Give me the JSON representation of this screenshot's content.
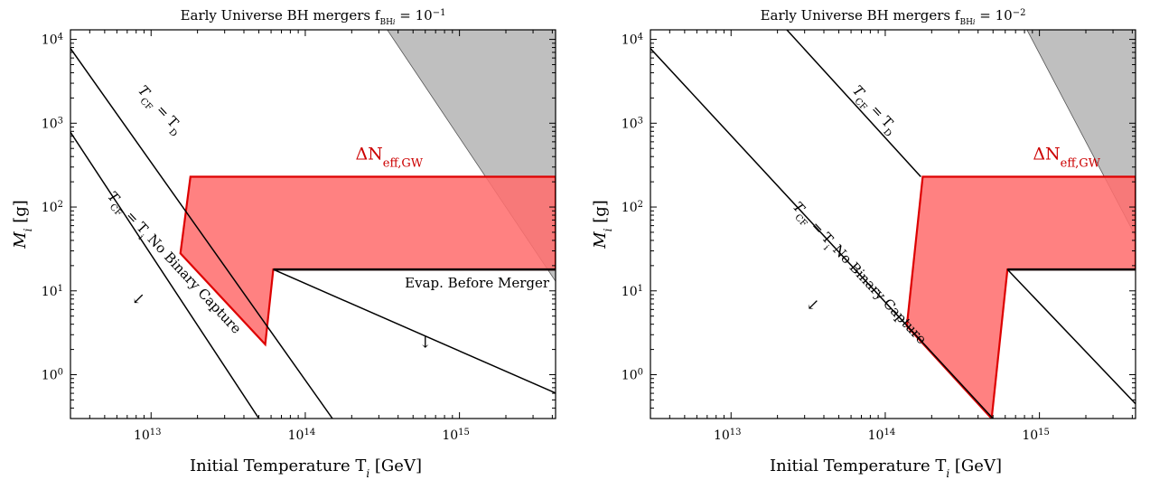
{
  "figure": {
    "xlabel": "Initial Temperature  T",
    "xlabel_sub": "i",
    "xlabel_unit": " [GeV]",
    "ylabel": "M",
    "ylabel_sub": "i",
    "ylabel_unit": " [g]"
  },
  "chart_data": [
    {
      "type": "area",
      "title": "Early Universe BH mergers  f",
      "title_sub": "BH",
      "title_subsub": "i",
      "title_eq": " = 10",
      "title_exp": "−1",
      "x_scale": "log",
      "y_scale": "log",
      "xlim": [
        3000000000000.0,
        4200000000000000.0
      ],
      "ylim": [
        0.3,
        13000.0
      ],
      "x_ticks": [
        {
          "base": "10",
          "exp": "13",
          "value": 10000000000000.0
        },
        {
          "base": "10",
          "exp": "14",
          "value": 100000000000000.0
        },
        {
          "base": "10",
          "exp": "15",
          "value": 1000000000000000.0
        }
      ],
      "y_ticks": [
        {
          "base": "10",
          "exp": "0",
          "value": 1
        },
        {
          "base": "10",
          "exp": "1",
          "value": 10
        },
        {
          "base": "10",
          "exp": "2",
          "value": 100
        },
        {
          "base": "10",
          "exp": "3",
          "value": 1000
        },
        {
          "base": "10",
          "exp": "4",
          "value": 10000
        }
      ],
      "lines": [
        {
          "name": "upper-diagonal",
          "points": [
            [
              3000000000000.0,
              7800
            ],
            [
              150000000000000.0,
              0.3
            ]
          ]
        },
        {
          "name": "lower-diagonal",
          "points": [
            [
              3000000000000.0,
              780
            ],
            [
              50000000000000.0,
              0.3
            ]
          ]
        },
        {
          "name": "evap-diagonal",
          "points": [
            [
              62000000000000.0,
              18
            ],
            [
              1e+16,
              0.3
            ]
          ]
        },
        {
          "name": "evap-horizontal",
          "thick": true,
          "points": [
            [
              62000000000000.0,
              18
            ],
            [
              4200000000000000.0,
              18
            ]
          ]
        }
      ],
      "red_region": [
        [
          18000000000000.0,
          230
        ],
        [
          4200000000000000.0,
          230
        ],
        [
          4200000000000000.0,
          18
        ],
        [
          62000000000000.0,
          18
        ],
        [
          55000000000000.0,
          2.3
        ],
        [
          15500000000000.0,
          28
        ]
      ],
      "gray_region": [
        [
          340000000000000.0,
          13000.0
        ],
        [
          4200000000000000.0,
          13000.0
        ],
        [
          4200000000000000.0,
          13
        ]
      ],
      "neff_label": {
        "text": "ΔN",
        "sub": "eff,GW",
        "at": [
          350000000000000.0,
          370
        ]
      },
      "annotations": [
        {
          "name": "cf-equals-d",
          "base": "T",
          "sub": "CF",
          "eq": " = T",
          "sub2": "D",
          "tail": "",
          "at": [
            11000000000000.0,
            1350
          ],
          "angle": 47
        },
        {
          "name": "cf-equals-i",
          "base": "T",
          "sub": "CF",
          "eq": " = T",
          "sub2": "i",
          "tail": "  No Binary Capture",
          "at": [
            13500000000000.0,
            20
          ],
          "angle": 47
        },
        {
          "name": "evap-before-merger",
          "base": "Evap. Before Merger",
          "sub": "",
          "eq": "",
          "sub2": "",
          "tail": "",
          "at": [
            1300000000000000.0,
            11
          ],
          "angle": 0
        }
      ],
      "arrows": [
        {
          "name": "arrow-binary-capture",
          "glyph": "↙",
          "at": [
            8300000000000.0,
            7
          ]
        },
        {
          "name": "arrow-evap",
          "glyph": "↓",
          "at": [
            600000000000000.0,
            2.1
          ]
        }
      ]
    },
    {
      "type": "area",
      "title": "Early Universe BH mergers  f",
      "title_sub": "BH",
      "title_subsub": "i",
      "title_eq": " = 10",
      "title_exp": "−2",
      "x_scale": "log",
      "y_scale": "log",
      "xlim": [
        3000000000000.0,
        4200000000000000.0
      ],
      "ylim": [
        0.3,
        13000.0
      ],
      "x_ticks": [
        {
          "base": "10",
          "exp": "13",
          "value": 10000000000000.0
        },
        {
          "base": "10",
          "exp": "14",
          "value": 100000000000000.0
        },
        {
          "base": "10",
          "exp": "15",
          "value": 1000000000000000.0
        }
      ],
      "y_ticks": [
        {
          "base": "10",
          "exp": "0",
          "value": 1
        },
        {
          "base": "10",
          "exp": "1",
          "value": 10
        },
        {
          "base": "10",
          "exp": "2",
          "value": 100
        },
        {
          "base": "10",
          "exp": "3",
          "value": 1000
        },
        {
          "base": "10",
          "exp": "4",
          "value": 10000
        }
      ],
      "lines": [
        {
          "name": "upper-diagonal",
          "points": [
            [
              23000000000000.0,
              13000.0
            ],
            [
              170000000000000.0,
              230
            ]
          ]
        },
        {
          "name": "lower-diagonal",
          "points": [
            [
              3000000000000.0,
              7800
            ],
            [
              500000000000000.0,
              0.3
            ]
          ]
        },
        {
          "name": "evap-diagonal",
          "points": [
            [
              620000000000000.0,
              18
            ],
            [
              4200000000000000.0,
              0.45
            ]
          ]
        },
        {
          "name": "evap-horizontal",
          "thick": true,
          "points": [
            [
              620000000000000.0,
              18
            ],
            [
              4200000000000000.0,
              18
            ]
          ]
        }
      ],
      "red_region": [
        [
          175000000000000.0,
          230
        ],
        [
          4200000000000000.0,
          230
        ],
        [
          4200000000000000.0,
          18
        ],
        [
          620000000000000.0,
          18
        ],
        [
          490000000000000.0,
          0.3
        ],
        [
          138000000000000.0,
          3.8
        ]
      ],
      "gray_region": [
        [
          830000000000000.0,
          13000.0
        ],
        [
          4200000000000000.0,
          13000.0
        ],
        [
          4200000000000000.0,
          45
        ]
      ],
      "neff_label": {
        "text": "ΔN",
        "sub": "eff,GW",
        "at": [
          1500000000000000.0,
          370
        ]
      },
      "annotations": [
        {
          "name": "cf-equals-d",
          "base": "T",
          "sub": "CF",
          "eq": " = T",
          "sub2": "D",
          "tail": "",
          "at": [
            82000000000000.0,
            1350
          ],
          "angle": 47
        },
        {
          "name": "cf-equals-i",
          "base": "T",
          "sub": "CF",
          "eq": " = T",
          "sub2": "i",
          "tail": "  No Binary Capture",
          "at": [
            65000000000000.0,
            15
          ],
          "angle": 47
        },
        {
          "name": "evap-before-merger",
          "base": "",
          "sub": "",
          "eq": "",
          "sub2": "",
          "tail": "",
          "at": [
            1000000000000000.0,
            10
          ],
          "angle": 0
        }
      ],
      "arrows": [
        {
          "name": "arrow-binary-capture",
          "glyph": "↙",
          "at": [
            34000000000000.0,
            6
          ]
        }
      ]
    }
  ]
}
